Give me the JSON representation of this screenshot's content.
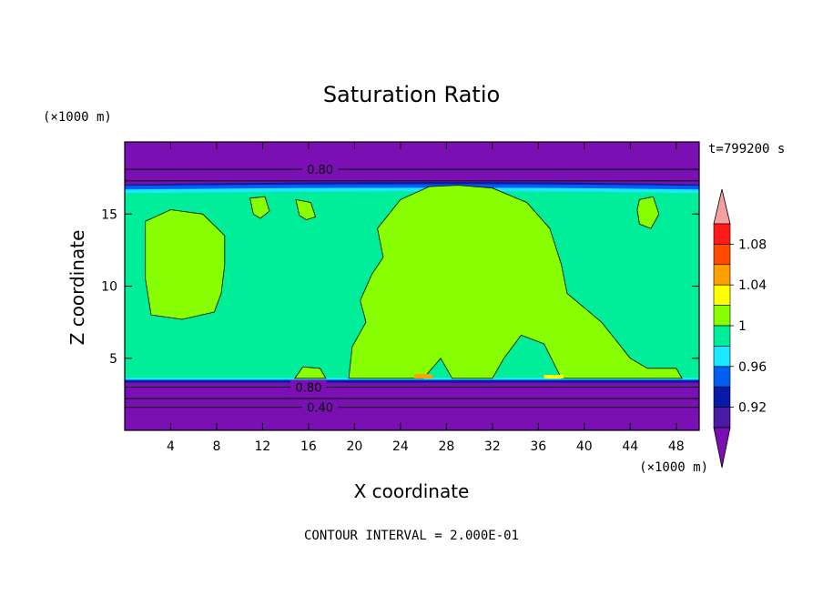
{
  "chart_data": {
    "type": "heatmap",
    "title": "Saturation Ratio",
    "xlabel": "X coordinate",
    "ylabel": "Z coordinate",
    "x_unit": "(×1000 m)",
    "y_unit": "(×1000 m)",
    "time_label": "t=799200 s",
    "footer": "CONTOUR INTERVAL = 2.000E-01",
    "xlim": [
      0,
      50
    ],
    "ylim": [
      0,
      20
    ],
    "x_ticks": [
      4,
      8,
      12,
      16,
      20,
      24,
      28,
      32,
      36,
      40,
      44,
      48
    ],
    "y_ticks": [
      5,
      10,
      15
    ],
    "contour_labels": [
      {
        "text": "0.80",
        "x": 17,
        "y": 18.1
      },
      {
        "text": "0.80",
        "x": 16,
        "y": 3.0
      },
      {
        "text": "0.40",
        "x": 17,
        "y": 1.6
      }
    ],
    "colorbar": {
      "labels": [
        "1.08",
        "1.04",
        "1",
        "0.96",
        "0.92"
      ],
      "levels": [
        "<0.90",
        "0.90-0.92",
        "0.92-0.94",
        "0.94-0.96",
        "0.96-0.98",
        "0.98-1.00",
        "1.00-1.02",
        "1.02-1.04",
        "1.04-1.06",
        "1.06-1.08",
        "1.08-1.10",
        ">1.10"
      ],
      "colors": [
        "#7a0fb3",
        "#4b1aa3",
        "#0a1aa8",
        "#005ff0",
        "#19e8ff",
        "#00ee99",
        "#88ff00",
        "#ffff00",
        "#ffa000",
        "#ff4a00",
        "#ff1a1a",
        "#f4a0a0"
      ]
    },
    "regions": {
      "background_color": "#00ee99",
      "upper_dry_layer": {
        "z_from": 17.0,
        "z_to": 20,
        "value": "<0.90",
        "color": "#7a0fb3"
      },
      "lower_dry_layer": {
        "z_from": 0,
        "z_to": 3.4,
        "value": "<0.90",
        "color": "#7a0fb3"
      },
      "supersaturated_color": "#88ff00"
    }
  }
}
